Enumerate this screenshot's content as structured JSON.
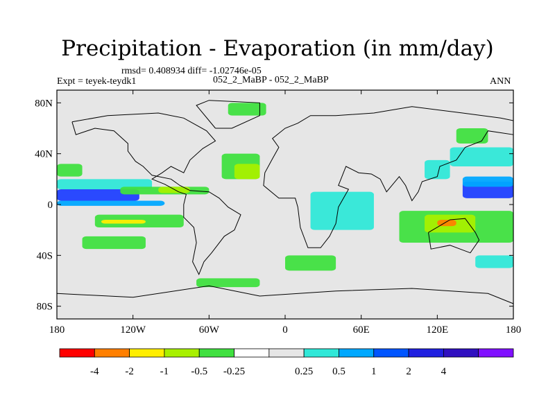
{
  "chart_data": {
    "type": "heatmap",
    "title": "Precipitation - Evaporation (in mm/day)",
    "stats_text": "rmsd= 0.408934 diff= -1.02746e-05",
    "experiment_label": "Expt = teyek-teydk1",
    "comparison_label": "052_2_MaBP - 052_2_MaBP",
    "season_label": "ANN",
    "x_ticks": [
      {
        "value": -180,
        "label": "180"
      },
      {
        "value": -120,
        "label": "120W"
      },
      {
        "value": -60,
        "label": "60W"
      },
      {
        "value": 0,
        "label": "0"
      },
      {
        "value": 60,
        "label": "60E"
      },
      {
        "value": 120,
        "label": "120E"
      },
      {
        "value": 180,
        "label": "180"
      }
    ],
    "y_ticks": [
      {
        "value": 80,
        "label": "80N"
      },
      {
        "value": 40,
        "label": "40N"
      },
      {
        "value": 0,
        "label": "0"
      },
      {
        "value": -40,
        "label": "40S"
      },
      {
        "value": -80,
        "label": "80S"
      }
    ],
    "xlim": [
      -180,
      180
    ],
    "ylim": [
      -90,
      90
    ],
    "background_color": "#e6e6e6",
    "colorbar": {
      "colors": [
        "#ff0000",
        "#ff7f00",
        "#ffee00",
        "#a8f000",
        "#40e040",
        "#ffffff",
        "#e6e6e6",
        "#30e8d8",
        "#00a8ff",
        "#0055ff",
        "#2020e0",
        "#3010c0",
        "#8010ff"
      ],
      "labels": [
        "-4",
        "-2",
        "-1",
        "-0.5",
        "-0.25",
        "0.25",
        "0.5",
        "1",
        "2",
        "4"
      ]
    },
    "anomaly_regions": [
      {
        "lon0": -180,
        "lon1": -115,
        "lat0": 12,
        "lat1": 3,
        "color": "#2040ff"
      },
      {
        "lon0": -180,
        "lon1": -95,
        "lat0": 3,
        "lat1": -1,
        "color": "#00a8ff"
      },
      {
        "lon0": -180,
        "lon1": -105,
        "lat0": 20,
        "lat1": 12,
        "color": "#30e8d8"
      },
      {
        "lon0": -150,
        "lon1": -80,
        "lat0": -8,
        "lat1": -18,
        "color": "#40e040"
      },
      {
        "lon0": -145,
        "lon1": -110,
        "lat0": -12,
        "lat1": -15,
        "color": "#ffee00"
      },
      {
        "lon0": -130,
        "lon1": -60,
        "lat0": 14,
        "lat1": 8,
        "color": "#40e040"
      },
      {
        "lon0": -100,
        "lon1": -75,
        "lat0": 14,
        "lat1": 9,
        "color": "#a8f000"
      },
      {
        "lon0": -180,
        "lon1": -160,
        "lat0": 32,
        "lat1": 22,
        "color": "#40e040"
      },
      {
        "lon0": -50,
        "lon1": -20,
        "lat0": 40,
        "lat1": 20,
        "color": "#40e040"
      },
      {
        "lon0": -40,
        "lon1": -20,
        "lat0": 32,
        "lat1": 20,
        "color": "#a8f000"
      },
      {
        "lon0": -45,
        "lon1": -15,
        "lat0": 80,
        "lat1": 70,
        "color": "#40e040"
      },
      {
        "lon0": 20,
        "lon1": 70,
        "lat0": 10,
        "lat1": -20,
        "color": "#30e8d8"
      },
      {
        "lon0": 90,
        "lon1": 180,
        "lat0": -5,
        "lat1": -30,
        "color": "#40e040"
      },
      {
        "lon0": 110,
        "lon1": 150,
        "lat0": -8,
        "lat1": -22,
        "color": "#a8f000"
      },
      {
        "lon0": 120,
        "lon1": 135,
        "lat0": -12,
        "lat1": -17,
        "color": "#ff7f00"
      },
      {
        "lon0": 140,
        "lon1": 180,
        "lat0": 18,
        "lat1": 5,
        "color": "#2040ff"
      },
      {
        "lon0": 140,
        "lon1": 180,
        "lat0": 22,
        "lat1": 14,
        "color": "#00a8ff"
      },
      {
        "lon0": 130,
        "lon1": 180,
        "lat0": 45,
        "lat1": 30,
        "color": "#30e8d8"
      },
      {
        "lon0": 135,
        "lon1": 160,
        "lat0": 60,
        "lat1": 48,
        "color": "#40e040"
      },
      {
        "lon0": 110,
        "lon1": 130,
        "lat0": 35,
        "lat1": 20,
        "color": "#30e8d8"
      },
      {
        "lon0": -160,
        "lon1": -110,
        "lat0": -25,
        "lat1": -35,
        "color": "#40e040"
      },
      {
        "lon0": 0,
        "lon1": 40,
        "lat0": -40,
        "lat1": -52,
        "color": "#40e040"
      },
      {
        "lon0": -70,
        "lon1": -20,
        "lat0": -58,
        "lat1": -65,
        "color": "#40e040"
      },
      {
        "lon0": 150,
        "lon1": 180,
        "lat0": -40,
        "lat1": -50,
        "color": "#30e8d8"
      }
    ],
    "land_outlines": [
      [
        [
          -168,
          65
        ],
        [
          -140,
          70
        ],
        [
          -100,
          72
        ],
        [
          -80,
          68
        ],
        [
          -62,
          58
        ],
        [
          -55,
          50
        ],
        [
          -65,
          44
        ],
        [
          -75,
          35
        ],
        [
          -80,
          25
        ],
        [
          -90,
          30
        ],
        [
          -97,
          25
        ],
        [
          -105,
          20
        ],
        [
          -95,
          16
        ],
        [
          -84,
          10
        ],
        [
          -78,
          8
        ],
        [
          -80,
          0
        ],
        [
          -80,
          -10
        ],
        [
          -72,
          -18
        ],
        [
          -70,
          -30
        ],
        [
          -73,
          -45
        ],
        [
          -68,
          -55
        ],
        [
          -64,
          -45
        ],
        [
          -58,
          -38
        ],
        [
          -48,
          -25
        ],
        [
          -40,
          -20
        ],
        [
          -35,
          -8
        ],
        [
          -45,
          -2
        ],
        [
          -52,
          5
        ],
        [
          -60,
          10
        ],
        [
          -75,
          11
        ],
        [
          -83,
          15
        ],
        [
          -90,
          20
        ],
        [
          -105,
          23
        ],
        [
          -112,
          30
        ],
        [
          -118,
          34
        ],
        [
          -124,
          42
        ],
        [
          -124,
          48
        ],
        [
          -135,
          58
        ],
        [
          -150,
          60
        ],
        [
          -165,
          55
        ],
        [
          -168,
          65
        ]
      ],
      [
        [
          -10,
          36
        ],
        [
          -5,
          45
        ],
        [
          -10,
          52
        ],
        [
          0,
          60
        ],
        [
          10,
          64
        ],
        [
          20,
          70
        ],
        [
          40,
          70
        ],
        [
          70,
          72
        ],
        [
          100,
          77
        ],
        [
          140,
          72
        ],
        [
          170,
          68
        ],
        [
          180,
          66
        ],
        [
          180,
          55
        ],
        [
          160,
          58
        ],
        [
          155,
          50
        ],
        [
          142,
          45
        ],
        [
          135,
          35
        ],
        [
          122,
          30
        ],
        [
          120,
          22
        ],
        [
          108,
          18
        ],
        [
          105,
          10
        ],
        [
          100,
          3
        ],
        [
          95,
          15
        ],
        [
          90,
          22
        ],
        [
          80,
          10
        ],
        [
          75,
          20
        ],
        [
          68,
          24
        ],
        [
          58,
          25
        ],
        [
          48,
          30
        ],
        [
          42,
          15
        ],
        [
          50,
          12
        ],
        [
          42,
          -2
        ],
        [
          40,
          -15
        ],
        [
          35,
          -25
        ],
        [
          28,
          -34
        ],
        [
          18,
          -34
        ],
        [
          12,
          -18
        ],
        [
          10,
          -2
        ],
        [
          8,
          5
        ],
        [
          -5,
          5
        ],
        [
          -17,
          15
        ],
        [
          -16,
          25
        ],
        [
          -10,
          36
        ]
      ],
      [
        [
          113,
          -22
        ],
        [
          130,
          -12
        ],
        [
          142,
          -11
        ],
        [
          150,
          -22
        ],
        [
          153,
          -28
        ],
        [
          146,
          -38
        ],
        [
          138,
          -35
        ],
        [
          130,
          -32
        ],
        [
          115,
          -35
        ],
        [
          113,
          -22
        ]
      ],
      [
        [
          -55,
          60
        ],
        [
          -42,
          60
        ],
        [
          -20,
          70
        ],
        [
          -20,
          80
        ],
        [
          -60,
          82
        ],
        [
          -70,
          78
        ],
        [
          -55,
          60
        ]
      ],
      [
        [
          -180,
          -70
        ],
        [
          -120,
          -73
        ],
        [
          -60,
          -64
        ],
        [
          -20,
          -72
        ],
        [
          40,
          -68
        ],
        [
          100,
          -66
        ],
        [
          160,
          -70
        ],
        [
          180,
          -78
        ],
        [
          180,
          -90
        ],
        [
          -180,
          -90
        ],
        [
          -180,
          -70
        ]
      ]
    ]
  }
}
